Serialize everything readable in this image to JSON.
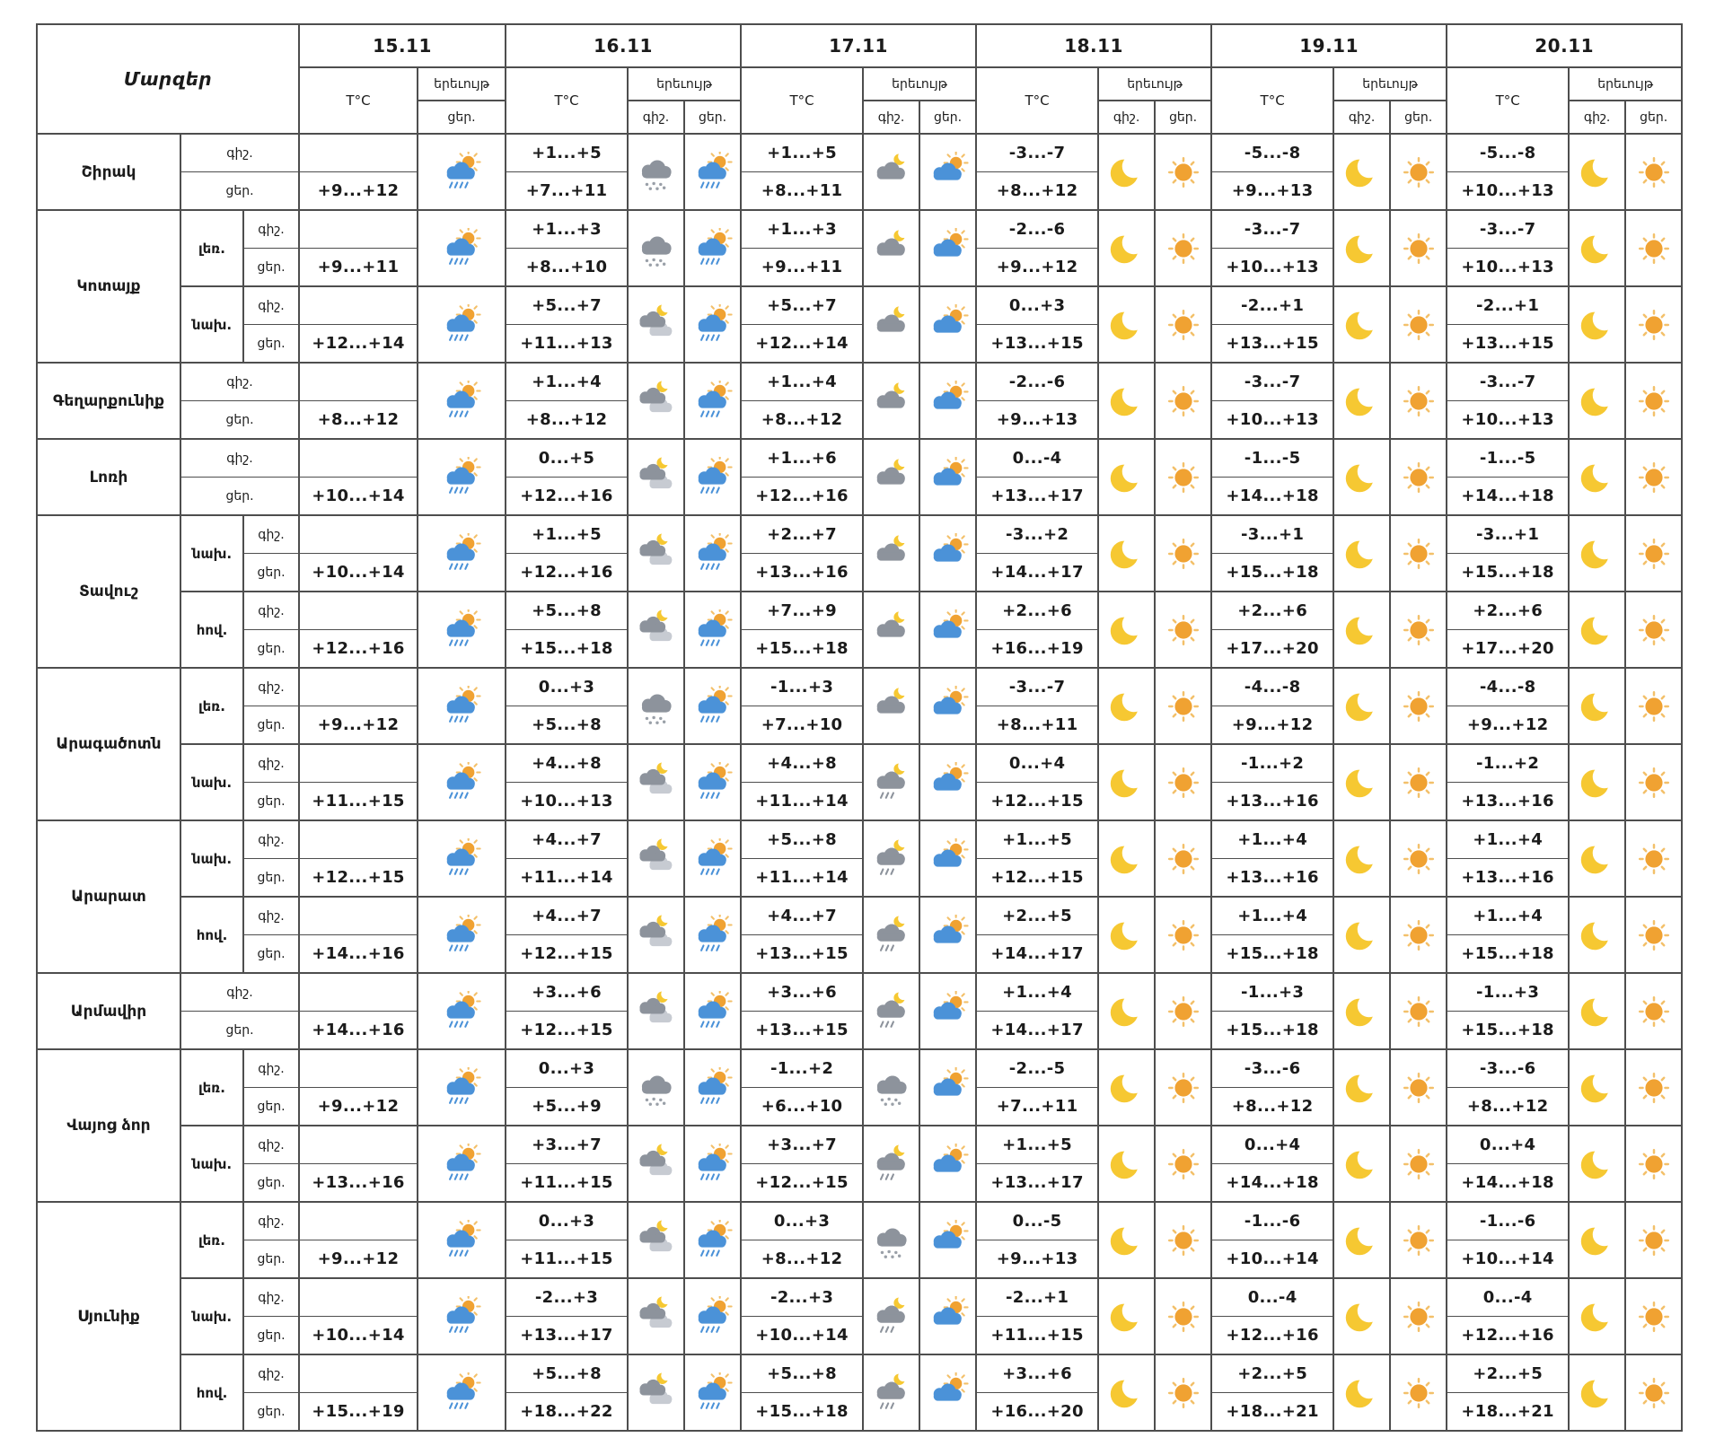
{
  "header": {
    "regions_label": "Մարզեր",
    "temp_label": "T°C",
    "phenomenon_label": "երեւույթ",
    "night_label": "գիշ.",
    "day_label": "ցեր.",
    "dates": [
      "15.11",
      "16.11",
      "17.11",
      "18.11",
      "19.11",
      "20.11"
    ]
  },
  "icon_colors": {
    "sun": "#f0a232",
    "sun_ray": "#f3c06a",
    "moon": "#f6c832",
    "cloud_blue": "#4b92d8",
    "cloud_gray": "#8d939c",
    "cloud_light": "#c7cbd2",
    "rain_blue": "#4b92d8",
    "snow": "#9aa0a8"
  },
  "groups": [
    {
      "region": "Շիրակ",
      "pairs": [
        {
          "sub": "",
          "t15": "+9...+12",
          "i15": "sun-rain-cloud",
          "days": [
            {
              "tn": "+1...+5",
              "td": "+7...+11",
              "in": "snow-cloud",
              "id": "sun-rain-cloud"
            },
            {
              "tn": "+1...+5",
              "td": "+8...+11",
              "in": "cloud-moon",
              "id": "cloud-sun"
            },
            {
              "tn": "-3...-7",
              "td": "+8...+12",
              "in": "moon",
              "id": "sun"
            },
            {
              "tn": "-5...-8",
              "td": "+9...+13",
              "in": "moon",
              "id": "sun"
            },
            {
              "tn": "-5...-8",
              "td": "+10...+13",
              "in": "moon",
              "id": "sun"
            }
          ]
        }
      ]
    },
    {
      "region": "Կոտայք",
      "pairs": [
        {
          "sub": "լեռ.",
          "t15": "+9...+11",
          "i15": "sun-rain-cloud",
          "days": [
            {
              "tn": "+1...+3",
              "td": "+8...+10",
              "in": "snow-cloud",
              "id": "sun-rain-cloud"
            },
            {
              "tn": "+1...+3",
              "td": "+9...+11",
              "in": "cloud-moon",
              "id": "cloud-sun"
            },
            {
              "tn": "-2...-6",
              "td": "+9...+12",
              "in": "moon",
              "id": "sun"
            },
            {
              "tn": "-3...-7",
              "td": "+10...+13",
              "in": "moon",
              "id": "sun"
            },
            {
              "tn": "-3...-7",
              "td": "+10...+13",
              "in": "moon",
              "id": "sun"
            }
          ]
        },
        {
          "sub": "նախ.",
          "t15": "+12...+14",
          "i15": "sun-rain-cloud",
          "days": [
            {
              "tn": "+5...+7",
              "td": "+11...+13",
              "in": "clouds-moon",
              "id": "sun-rain-cloud"
            },
            {
              "tn": "+5...+7",
              "td": "+12...+14",
              "in": "cloud-moon",
              "id": "cloud-sun"
            },
            {
              "tn": "0...+3",
              "td": "+13...+15",
              "in": "moon",
              "id": "sun"
            },
            {
              "tn": "-2...+1",
              "td": "+13...+15",
              "in": "moon",
              "id": "sun"
            },
            {
              "tn": "-2...+1",
              "td": "+13...+15",
              "in": "moon",
              "id": "sun"
            }
          ]
        }
      ]
    },
    {
      "region": "Գեղարքունիք",
      "pairs": [
        {
          "sub": "",
          "t15": "+8...+12",
          "i15": "sun-rain-cloud",
          "days": [
            {
              "tn": "+1...+4",
              "td": "+8...+12",
              "in": "clouds-moon",
              "id": "sun-rain-cloud"
            },
            {
              "tn": "+1...+4",
              "td": "+8...+12",
              "in": "cloud-moon",
              "id": "cloud-sun"
            },
            {
              "tn": "-2...-6",
              "td": "+9...+13",
              "in": "moon",
              "id": "sun"
            },
            {
              "tn": "-3...-7",
              "td": "+10...+13",
              "in": "moon",
              "id": "sun"
            },
            {
              "tn": "-3...-7",
              "td": "+10...+13",
              "in": "moon",
              "id": "sun"
            }
          ]
        }
      ]
    },
    {
      "region": "Լոռի",
      "pairs": [
        {
          "sub": "",
          "t15": "+10...+14",
          "i15": "sun-rain-cloud",
          "days": [
            {
              "tn": "0...+5",
              "td": "+12...+16",
              "in": "clouds-moon",
              "id": "sun-rain-cloud"
            },
            {
              "tn": "+1...+6",
              "td": "+12...+16",
              "in": "cloud-moon",
              "id": "cloud-sun"
            },
            {
              "tn": "0...-4",
              "td": "+13...+17",
              "in": "moon",
              "id": "sun"
            },
            {
              "tn": "-1...-5",
              "td": "+14...+18",
              "in": "moon",
              "id": "sun"
            },
            {
              "tn": "-1...-5",
              "td": "+14...+18",
              "in": "moon",
              "id": "sun"
            }
          ]
        }
      ]
    },
    {
      "region": "Տավուշ",
      "pairs": [
        {
          "sub": "նախ.",
          "t15": "+10...+14",
          "i15": "sun-rain-cloud",
          "days": [
            {
              "tn": "+1...+5",
              "td": "+12...+16",
              "in": "clouds-moon",
              "id": "sun-rain-cloud"
            },
            {
              "tn": "+2...+7",
              "td": "+13...+16",
              "in": "cloud-moon",
              "id": "cloud-sun"
            },
            {
              "tn": "-3...+2",
              "td": "+14...+17",
              "in": "moon",
              "id": "sun"
            },
            {
              "tn": "-3...+1",
              "td": "+15...+18",
              "in": "moon",
              "id": "sun"
            },
            {
              "tn": "-3...+1",
              "td": "+15...+18",
              "in": "moon",
              "id": "sun"
            }
          ]
        },
        {
          "sub": "հով.",
          "t15": "+12...+16",
          "i15": "sun-rain-cloud",
          "days": [
            {
              "tn": "+5...+8",
              "td": "+15...+18",
              "in": "clouds-moon",
              "id": "sun-rain-cloud"
            },
            {
              "tn": "+7...+9",
              "td": "+15...+18",
              "in": "cloud-moon",
              "id": "cloud-sun"
            },
            {
              "tn": "+2...+6",
              "td": "+16...+19",
              "in": "moon",
              "id": "sun"
            },
            {
              "tn": "+2...+6",
              "td": "+17...+20",
              "in": "moon",
              "id": "sun"
            },
            {
              "tn": "+2...+6",
              "td": "+17...+20",
              "in": "moon",
              "id": "sun"
            }
          ]
        }
      ]
    },
    {
      "region": "Արագածոտն",
      "pairs": [
        {
          "sub": "լեռ.",
          "t15": "+9...+12",
          "i15": "sun-rain-cloud",
          "days": [
            {
              "tn": "0...+3",
              "td": "+5...+8",
              "in": "snow-cloud",
              "id": "sun-rain-cloud"
            },
            {
              "tn": "-1...+3",
              "td": "+7...+10",
              "in": "cloud-moon",
              "id": "cloud-sun"
            },
            {
              "tn": "-3...-7",
              "td": "+8...+11",
              "in": "moon",
              "id": "sun"
            },
            {
              "tn": "-4...-8",
              "td": "+9...+12",
              "in": "moon",
              "id": "sun"
            },
            {
              "tn": "-4...-8",
              "td": "+9...+12",
              "in": "moon",
              "id": "sun"
            }
          ]
        },
        {
          "sub": "նախ.",
          "t15": "+11...+15",
          "i15": "sun-rain-cloud",
          "days": [
            {
              "tn": "+4...+8",
              "td": "+10...+13",
              "in": "clouds-moon",
              "id": "sun-rain-cloud"
            },
            {
              "tn": "+4...+8",
              "td": "+11...+14",
              "in": "cloud-moon-rain",
              "id": "cloud-sun"
            },
            {
              "tn": "0...+4",
              "td": "+12...+15",
              "in": "moon",
              "id": "sun"
            },
            {
              "tn": "-1...+2",
              "td": "+13...+16",
              "in": "moon",
              "id": "sun"
            },
            {
              "tn": "-1...+2",
              "td": "+13...+16",
              "in": "moon",
              "id": "sun"
            }
          ]
        }
      ]
    },
    {
      "region": "Արարատ",
      "pairs": [
        {
          "sub": "նախ.",
          "t15": "+12...+15",
          "i15": "sun-rain-cloud",
          "days": [
            {
              "tn": "+4...+7",
              "td": "+11...+14",
              "in": "clouds-moon",
              "id": "sun-rain-cloud"
            },
            {
              "tn": "+5...+8",
              "td": "+11...+14",
              "in": "cloud-moon-rain",
              "id": "cloud-sun"
            },
            {
              "tn": "+1...+5",
              "td": "+12...+15",
              "in": "moon",
              "id": "sun"
            },
            {
              "tn": "+1...+4",
              "td": "+13...+16",
              "in": "moon",
              "id": "sun"
            },
            {
              "tn": "+1...+4",
              "td": "+13...+16",
              "in": "moon",
              "id": "sun"
            }
          ]
        },
        {
          "sub": "հով.",
          "t15": "+14...+16",
          "i15": "sun-rain-cloud",
          "days": [
            {
              "tn": "+4...+7",
              "td": "+12...+15",
              "in": "clouds-moon",
              "id": "sun-rain-cloud"
            },
            {
              "tn": "+4...+7",
              "td": "+13...+15",
              "in": "cloud-moon-rain",
              "id": "cloud-sun"
            },
            {
              "tn": "+2...+5",
              "td": "+14...+17",
              "in": "moon",
              "id": "sun"
            },
            {
              "tn": "+1...+4",
              "td": "+15...+18",
              "in": "moon",
              "id": "sun"
            },
            {
              "tn": "+1...+4",
              "td": "+15...+18",
              "in": "moon",
              "id": "sun"
            }
          ]
        }
      ]
    },
    {
      "region": "Արմավիր",
      "pairs": [
        {
          "sub": "",
          "t15": "+14...+16",
          "i15": "sun-rain-cloud",
          "days": [
            {
              "tn": "+3...+6",
              "td": "+12...+15",
              "in": "clouds-moon",
              "id": "sun-rain-cloud"
            },
            {
              "tn": "+3...+6",
              "td": "+13...+15",
              "in": "cloud-moon-rain",
              "id": "cloud-sun"
            },
            {
              "tn": "+1...+4",
              "td": "+14...+17",
              "in": "moon",
              "id": "sun"
            },
            {
              "tn": "-1...+3",
              "td": "+15...+18",
              "in": "moon",
              "id": "sun"
            },
            {
              "tn": "-1...+3",
              "td": "+15...+18",
              "in": "moon",
              "id": "sun"
            }
          ]
        }
      ]
    },
    {
      "region": "Վայոց ձոր",
      "pairs": [
        {
          "sub": "լեռ.",
          "t15": "+9...+12",
          "i15": "sun-rain-cloud",
          "days": [
            {
              "tn": "0...+3",
              "td": "+5...+9",
              "in": "snow-cloud",
              "id": "sun-rain-cloud"
            },
            {
              "tn": "-1...+2",
              "td": "+6...+10",
              "in": "snow-cloud",
              "id": "cloud-sun"
            },
            {
              "tn": "-2...-5",
              "td": "+7...+11",
              "in": "moon",
              "id": "sun"
            },
            {
              "tn": "-3...-6",
              "td": "+8...+12",
              "in": "moon",
              "id": "sun"
            },
            {
              "tn": "-3...-6",
              "td": "+8...+12",
              "in": "moon",
              "id": "sun"
            }
          ]
        },
        {
          "sub": "նախ.",
          "t15": "+13...+16",
          "i15": "sun-rain-cloud",
          "days": [
            {
              "tn": "+3...+7",
              "td": "+11...+15",
              "in": "clouds-moon",
              "id": "sun-rain-cloud"
            },
            {
              "tn": "+3...+7",
              "td": "+12...+15",
              "in": "cloud-moon-rain",
              "id": "cloud-sun"
            },
            {
              "tn": "+1...+5",
              "td": "+13...+17",
              "in": "moon",
              "id": "sun"
            },
            {
              "tn": "0...+4",
              "td": "+14...+18",
              "in": "moon",
              "id": "sun"
            },
            {
              "tn": "0...+4",
              "td": "+14...+18",
              "in": "moon",
              "id": "sun"
            }
          ]
        }
      ]
    },
    {
      "region": "Սյունիք",
      "pairs": [
        {
          "sub": "լեռ.",
          "t15": "+9...+12",
          "i15": "sun-rain-cloud",
          "days": [
            {
              "tn": "0...+3",
              "td": "+11...+15",
              "in": "clouds-moon",
              "id": "sun-rain-cloud"
            },
            {
              "tn": "0...+3",
              "td": "+8...+12",
              "in": "snow-cloud",
              "id": "cloud-sun"
            },
            {
              "tn": "0...-5",
              "td": "+9...+13",
              "in": "moon",
              "id": "sun"
            },
            {
              "tn": "-1...-6",
              "td": "+10...+14",
              "in": "moon",
              "id": "sun"
            },
            {
              "tn": "-1...-6",
              "td": "+10...+14",
              "in": "moon",
              "id": "sun"
            }
          ]
        },
        {
          "sub": "նախ.",
          "t15": "+10...+14",
          "i15": "sun-rain-cloud",
          "days": [
            {
              "tn": "-2...+3",
              "td": "+13...+17",
              "in": "clouds-moon",
              "id": "sun-rain-cloud"
            },
            {
              "tn": "-2...+3",
              "td": "+10...+14",
              "in": "cloud-moon-rain",
              "id": "cloud-sun"
            },
            {
              "tn": "-2...+1",
              "td": "+11...+15",
              "in": "moon",
              "id": "sun"
            },
            {
              "tn": "0...-4",
              "td": "+12...+16",
              "in": "moon",
              "id": "sun"
            },
            {
              "tn": "0...-4",
              "td": "+12...+16",
              "in": "moon",
              "id": "sun"
            }
          ]
        },
        {
          "sub": "հով.",
          "t15": "+15...+19",
          "i15": "sun-rain-cloud",
          "days": [
            {
              "tn": "+5...+8",
              "td": "+18...+22",
              "in": "clouds-moon",
              "id": "sun-rain-cloud"
            },
            {
              "tn": "+5...+8",
              "td": "+15...+18",
              "in": "cloud-moon-rain",
              "id": "cloud-sun"
            },
            {
              "tn": "+3...+6",
              "td": "+16...+20",
              "in": "moon",
              "id": "sun"
            },
            {
              "tn": "+2...+5",
              "td": "+18...+21",
              "in": "moon",
              "id": "sun"
            },
            {
              "tn": "+2...+5",
              "td": "+18...+21",
              "in": "moon",
              "id": "sun"
            }
          ]
        }
      ]
    }
  ]
}
